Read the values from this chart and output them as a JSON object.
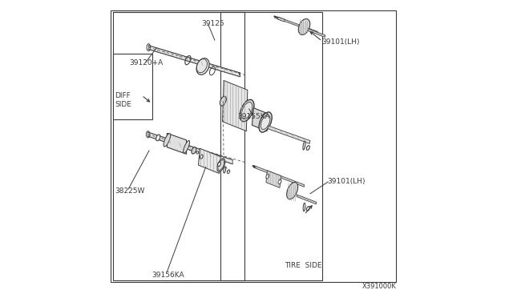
{
  "bg_color": "#ffffff",
  "lc": "#3a3a3a",
  "fs": 6.5,
  "figsize": [
    6.4,
    3.72
  ],
  "dpi": 100,
  "labels": {
    "39120A": [
      0.075,
      0.785,
      "39120+A"
    ],
    "DIFF": [
      0.032,
      0.67,
      "DIFF"
    ],
    "SIDE": [
      0.032,
      0.64,
      "SIDE"
    ],
    "38225W": [
      0.032,
      0.36,
      "38225W"
    ],
    "39125": [
      0.318,
      0.92,
      "39125"
    ],
    "39155KA": [
      0.44,
      0.6,
      "39155KA"
    ],
    "39156KA": [
      0.155,
      0.075,
      "39156KA"
    ],
    "39101LH_t": [
      0.72,
      0.845,
      "39101(LH)"
    ],
    "39101LH_b": [
      0.74,
      0.385,
      "39101(LH)"
    ],
    "TIRESIDE": [
      0.6,
      0.105,
      "TIRE  SIDE"
    ],
    "X391000K": [
      0.86,
      0.04,
      "X391000K"
    ]
  }
}
